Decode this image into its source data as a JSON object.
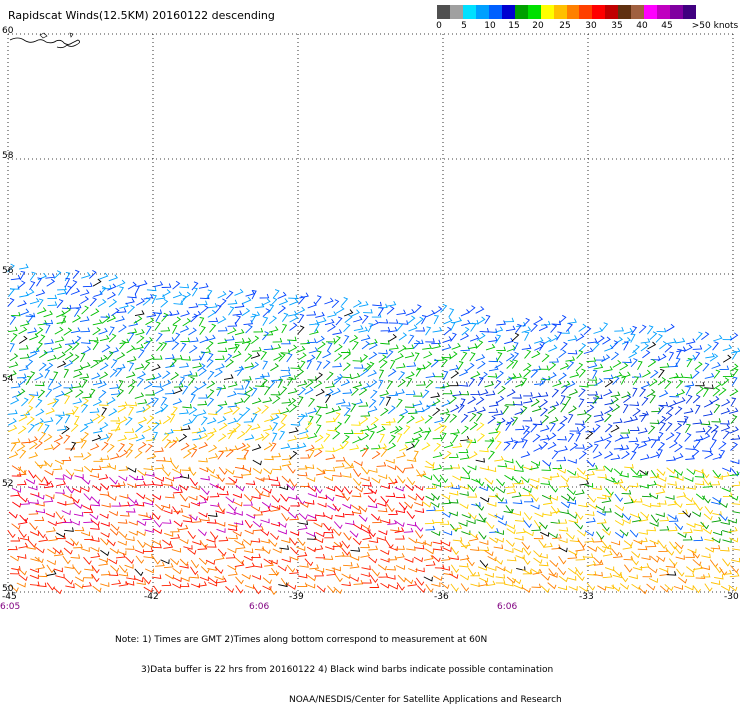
{
  "title": "Rapidscat Winds(12.5KM) 20160122 descending",
  "colorbar": {
    "colors": [
      "#505050",
      "#a0a0a0",
      "#00e0ff",
      "#00a0ff",
      "#0060ff",
      "#0000d0",
      "#00a000",
      "#00e000",
      "#ffff00",
      "#ffc000",
      "#ff8000",
      "#ff4000",
      "#ff0000",
      "#c00000",
      "#603010",
      "#a06040",
      "#ff00ff",
      "#c000c0",
      "#8000a0",
      "#400080"
    ],
    "labels": [
      "0",
      "5",
      "10",
      "15",
      "20",
      "25",
      "30",
      "35",
      "40",
      "45",
      ">50 knots"
    ],
    "units": "knots"
  },
  "map": {
    "lat_ticks": [
      "60",
      "58",
      "56",
      "54",
      "52",
      "50"
    ],
    "lon_ticks": [
      "-45",
      "-42",
      "-39",
      "-36",
      "-33",
      "-30"
    ],
    "time_labels": [
      "6:05",
      "6:06",
      "6:06"
    ],
    "swath": "descending pass, 12.5 km wind vectors"
  },
  "notes": [
    "Note: 1) Times are GMT 2)Times along bottom correspond to measurement at 60N",
    "3)Data buffer is 22 hrs from 20160122 4) Black wind barbs indicate possible contamination",
    "NOAA/NESDIS/Center for Satellite Applications and Research"
  ]
}
